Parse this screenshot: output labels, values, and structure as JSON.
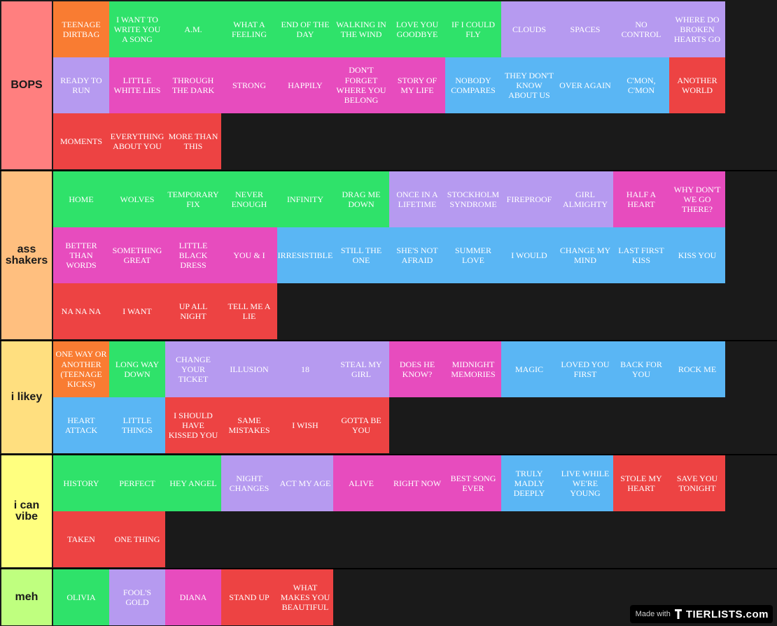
{
  "colors": {
    "orange": "#f97c32",
    "green": "#2fe26a",
    "lavender": "#b69af0",
    "pink": "#e74cbe",
    "blue": "#5ab6f4",
    "red": "#ed4343",
    "background": "#1a1a1a"
  },
  "tiers": [
    {
      "label": "BOPS",
      "color": "#ff7f7f",
      "items": [
        {
          "text": "TEENAGE DIRTBAG",
          "color": "orange"
        },
        {
          "text": "I WANT TO WRITE YOU A SONG",
          "color": "green"
        },
        {
          "text": "A.M.",
          "color": "green"
        },
        {
          "text": "WHAT A FEELING",
          "color": "green"
        },
        {
          "text": "END OF THE DAY",
          "color": "green"
        },
        {
          "text": "WALKING IN THE WIND",
          "color": "green"
        },
        {
          "text": "LOVE YOU GOODBYE",
          "color": "green"
        },
        {
          "text": "IF I COULD FLY",
          "color": "green"
        },
        {
          "text": "CLOUDS",
          "color": "lavender"
        },
        {
          "text": "SPACES",
          "color": "lavender"
        },
        {
          "text": "NO CONTROL",
          "color": "lavender"
        },
        {
          "text": "WHERE DO BROKEN HEARTS GO",
          "color": "lavender"
        },
        {
          "text": "READY TO RUN",
          "color": "lavender"
        },
        {
          "text": "LITTLE WHITE LIES",
          "color": "pink"
        },
        {
          "text": "THROUGH THE DARK",
          "color": "pink"
        },
        {
          "text": "STRONG",
          "color": "pink"
        },
        {
          "text": "HAPPILY",
          "color": "pink"
        },
        {
          "text": "DON'T FORGET WHERE YOU BELONG",
          "color": "pink"
        },
        {
          "text": "STORY OF MY LIFE",
          "color": "pink"
        },
        {
          "text": "NOBODY COMPARES",
          "color": "blue"
        },
        {
          "text": "THEY DON'T KNOW ABOUT US",
          "color": "blue"
        },
        {
          "text": "OVER AGAIN",
          "color": "blue"
        },
        {
          "text": "C'MON, C'MON",
          "color": "blue"
        },
        {
          "text": "ANOTHER WORLD",
          "color": "red"
        },
        {
          "text": "MOMENTS",
          "color": "red"
        },
        {
          "text": "EVERYTHING ABOUT YOU",
          "color": "red"
        },
        {
          "text": "MORE THAN THIS",
          "color": "red"
        }
      ]
    },
    {
      "label": "ass shakers",
      "color": "#ffbf7f",
      "items": [
        {
          "text": "HOME",
          "color": "green"
        },
        {
          "text": "WOLVES",
          "color": "green"
        },
        {
          "text": "TEMPORARY FIX",
          "color": "green"
        },
        {
          "text": "NEVER ENOUGH",
          "color": "green"
        },
        {
          "text": "INFINITY",
          "color": "green"
        },
        {
          "text": "DRAG ME DOWN",
          "color": "green"
        },
        {
          "text": "ONCE IN A LIFETIME",
          "color": "lavender"
        },
        {
          "text": "STOCKHOLM SYNDROME",
          "color": "lavender"
        },
        {
          "text": "FIREPROOF",
          "color": "lavender"
        },
        {
          "text": "GIRL ALMIGHTY",
          "color": "lavender"
        },
        {
          "text": "HALF A HEART",
          "color": "pink"
        },
        {
          "text": "WHY DON'T WE GO THERE?",
          "color": "pink"
        },
        {
          "text": "BETTER THAN WORDS",
          "color": "pink"
        },
        {
          "text": "SOMETHING GREAT",
          "color": "pink"
        },
        {
          "text": "LITTLE BLACK DRESS",
          "color": "pink"
        },
        {
          "text": "YOU & I",
          "color": "pink"
        },
        {
          "text": "IRRESISTIBLE",
          "color": "blue"
        },
        {
          "text": "STILL THE ONE",
          "color": "blue"
        },
        {
          "text": "SHE'S NOT AFRAID",
          "color": "blue"
        },
        {
          "text": "SUMMER LOVE",
          "color": "blue"
        },
        {
          "text": "I WOULD",
          "color": "blue"
        },
        {
          "text": "CHANGE MY MIND",
          "color": "blue"
        },
        {
          "text": "LAST FIRST KISS",
          "color": "blue"
        },
        {
          "text": "KISS YOU",
          "color": "blue"
        },
        {
          "text": "NA NA NA",
          "color": "red"
        },
        {
          "text": "I WANT",
          "color": "red"
        },
        {
          "text": "UP ALL NIGHT",
          "color": "red"
        },
        {
          "text": "TELL ME A LIE",
          "color": "red"
        }
      ]
    },
    {
      "label": "i likey",
      "color": "#ffdf7f",
      "items": [
        {
          "text": "ONE WAY OR ANOTHER (TEENAGE KICKS)",
          "color": "orange"
        },
        {
          "text": "LONG WAY DOWN",
          "color": "green"
        },
        {
          "text": "CHANGE YOUR TICKET",
          "color": "lavender"
        },
        {
          "text": "ILLUSION",
          "color": "lavender"
        },
        {
          "text": "18",
          "color": "lavender"
        },
        {
          "text": "STEAL MY GIRL",
          "color": "lavender"
        },
        {
          "text": "DOES HE KNOW?",
          "color": "pink"
        },
        {
          "text": "MIDNIGHT MEMORIES",
          "color": "pink"
        },
        {
          "text": "MAGIC",
          "color": "blue"
        },
        {
          "text": "LOVED YOU FIRST",
          "color": "blue"
        },
        {
          "text": "BACK FOR YOU",
          "color": "blue"
        },
        {
          "text": "ROCK ME",
          "color": "blue"
        },
        {
          "text": "HEART ATTACK",
          "color": "blue"
        },
        {
          "text": "LITTLE THINGS",
          "color": "blue"
        },
        {
          "text": "I SHOULD HAVE KISSED YOU",
          "color": "red"
        },
        {
          "text": "SAME MISTAKES",
          "color": "red"
        },
        {
          "text": "I WISH",
          "color": "red"
        },
        {
          "text": "GOTTA BE YOU",
          "color": "red"
        }
      ]
    },
    {
      "label": "i can vibe",
      "color": "#ffff7f",
      "items": [
        {
          "text": "HISTORY",
          "color": "green"
        },
        {
          "text": "PERFECT",
          "color": "green"
        },
        {
          "text": "HEY ANGEL",
          "color": "green"
        },
        {
          "text": "NIGHT CHANGES",
          "color": "lavender"
        },
        {
          "text": "ACT MY AGE",
          "color": "lavender"
        },
        {
          "text": "ALIVE",
          "color": "pink"
        },
        {
          "text": "RIGHT NOW",
          "color": "pink"
        },
        {
          "text": "BEST SONG EVER",
          "color": "pink"
        },
        {
          "text": "TRULY MADLY DEEPLY",
          "color": "blue"
        },
        {
          "text": "LIVE WHILE WE'RE YOUNG",
          "color": "blue"
        },
        {
          "text": "STOLE MY HEART",
          "color": "red"
        },
        {
          "text": "SAVE YOU TONIGHT",
          "color": "red"
        },
        {
          "text": "TAKEN",
          "color": "red"
        },
        {
          "text": "ONE THING",
          "color": "red"
        }
      ]
    },
    {
      "label": "meh",
      "color": "#bfff7f",
      "items": [
        {
          "text": "OLIVIA",
          "color": "green"
        },
        {
          "text": "FOOL'S GOLD",
          "color": "lavender"
        },
        {
          "text": "DIANA",
          "color": "pink"
        },
        {
          "text": "STAND UP",
          "color": "red"
        },
        {
          "text": "WHAT MAKES YOU BEAUTIFUL",
          "color": "red"
        }
      ]
    }
  ],
  "watermark": {
    "made_with": "Made with",
    "brand": "TIERLISTS.com"
  }
}
